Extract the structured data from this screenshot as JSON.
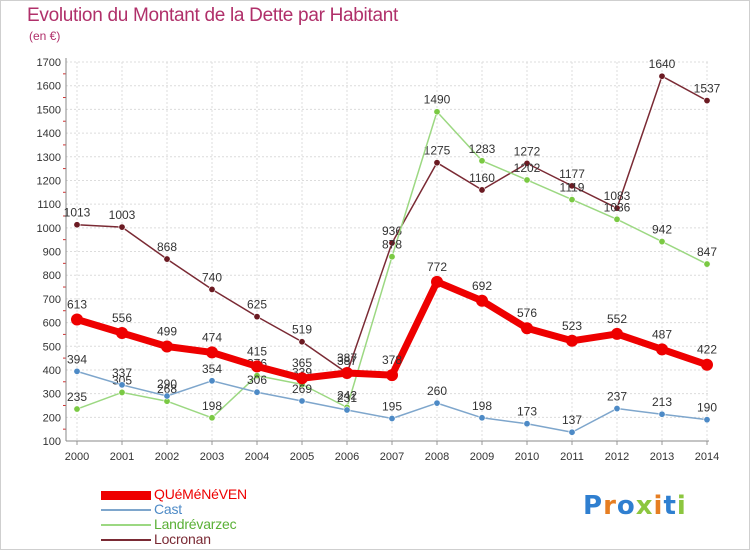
{
  "title": "Evolution du Montant de la Dette par Habitant",
  "unit": "(en €)",
  "logo": {
    "text": "Proxiti",
    "letter_colors": [
      "#2f7fd0",
      "#e67e22",
      "#2f7fd0",
      "#8cc63f",
      "#e67e22",
      "#2f7fd0",
      "#8cc63f"
    ]
  },
  "chart_data": {
    "type": "line",
    "x": [
      "2000",
      "2001",
      "2002",
      "2003",
      "2004",
      "2005",
      "2006",
      "2007",
      "2008",
      "2009",
      "2010",
      "2011",
      "2012",
      "2013",
      "2014"
    ],
    "ylim": [
      100,
      1700
    ],
    "yticks": [
      "100",
      "200",
      "300",
      "400",
      "500",
      "600",
      "700",
      "800",
      "900",
      "1000",
      "1100",
      "1200",
      "1300",
      "1400",
      "1500",
      "1600",
      "1700"
    ],
    "grid": true,
    "legend_position": "bottom-left",
    "series": [
      {
        "name": "Locronan",
        "color": "#7a2a34",
        "marker_color": "#6b1a22",
        "values": [
          1013,
          1003,
          868,
          740,
          625,
          519,
          387,
          936,
          1275,
          1160,
          1272,
          1177,
          1083,
          1640,
          1537
        ],
        "labels": [
          "1013",
          "1003",
          "868",
          "740",
          "625",
          "519",
          "387",
          "936",
          "1275",
          "1160",
          "1272",
          "1177",
          "1083",
          "1640",
          "1537"
        ]
      },
      {
        "name": "Landrévarzec",
        "color": "#9cd882",
        "marker_color": "#7ac943",
        "values": [
          235,
          305,
          268,
          198,
          376,
          339,
          242,
          878,
          1490,
          1283,
          1202,
          1119,
          1036,
          942,
          847
        ],
        "labels": [
          "235",
          "305",
          "268",
          "198",
          "376",
          "339",
          "242",
          "878",
          "1490",
          "1283",
          "1202",
          "1119",
          "1036",
          "942",
          "847"
        ]
      },
      {
        "name": "Cast",
        "color": "#7ea6cc",
        "marker_color": "#4d8ac6",
        "values": [
          394,
          337,
          290,
          354,
          306,
          269,
          231,
          195,
          260,
          198,
          173,
          137,
          237,
          213,
          190
        ],
        "labels": [
          "394",
          "337",
          "290",
          "354",
          "306",
          "269",
          "231",
          "195",
          "260",
          "198",
          "173",
          "137",
          "237",
          "213",
          "190"
        ]
      },
      {
        "name": "QUéMéNéVEN",
        "color": "#ee0000",
        "marker_color": "#ee0000",
        "values": [
          613,
          556,
          499,
          474,
          415,
          365,
          387,
          378,
          772,
          692,
          576,
          523,
          552,
          487,
          422
        ],
        "labels": [
          "613",
          "556",
          "499",
          "474",
          "415",
          "365",
          "387",
          "378",
          "772",
          "692",
          "576",
          "523",
          "552",
          "487",
          "422"
        ]
      }
    ],
    "legend": [
      {
        "name": "QUéMéNéVEN",
        "color": "#ee0000",
        "thickness": 9
      },
      {
        "name": "Cast",
        "color": "#7ea6cc",
        "thickness": 2
      },
      {
        "name": "Landrévarzec",
        "color": "#9cd882",
        "thickness": 2
      },
      {
        "name": "Locronan",
        "color": "#7a2a34",
        "thickness": 2
      }
    ]
  }
}
